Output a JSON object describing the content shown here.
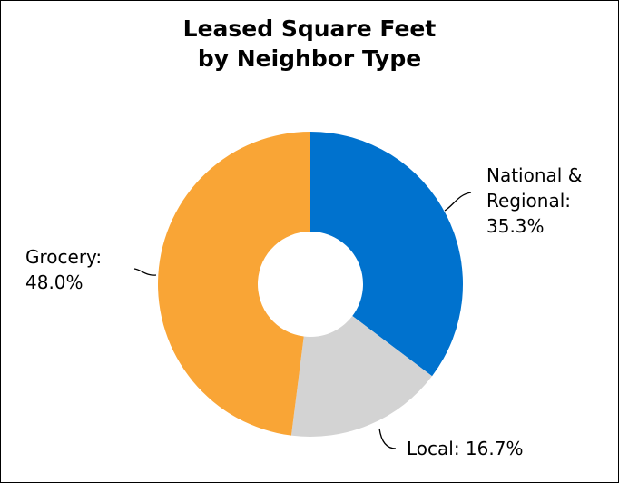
{
  "chart_data": {
    "type": "pie",
    "style": "donut",
    "title": [
      "Leased Square Feet",
      "by Neighbor Type"
    ],
    "slices": [
      {
        "name": "National & Regional",
        "label_lines": [
          "National &",
          "Regional:",
          "35.3%"
        ],
        "value": 35.3,
        "color": "#0072ce"
      },
      {
        "name": "Local",
        "label_lines": [
          "Local: 16.7%"
        ],
        "value": 16.7,
        "color": "#d3d3d3"
      },
      {
        "name": "Grocery",
        "label_lines": [
          "Grocery:",
          "48.0%"
        ],
        "value": 48.0,
        "color": "#f9a536"
      }
    ],
    "legend": "none",
    "border": true
  }
}
